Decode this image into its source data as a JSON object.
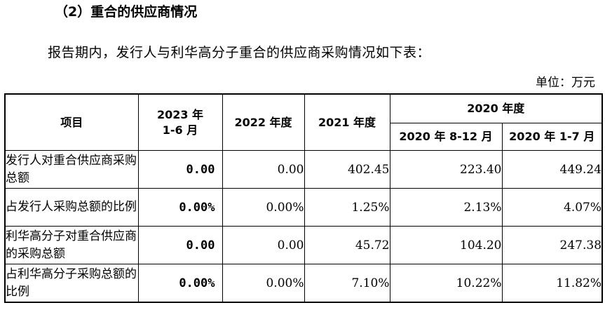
{
  "section_heading": "（2）重合的供应商情况",
  "intro": "报告期内，发行人与利华高分子重合的供应商采购情况如下表：",
  "unit": "单位：万元",
  "table": {
    "headers": {
      "item": "项目",
      "c2023": "2023 年\n1-6 月",
      "c2022": "2022 年度",
      "c2021": "2021 年度",
      "c2020": "2020 年度",
      "c2020a": "2020 年 8-12 月",
      "c2020b": "2020 年 1-7 月"
    },
    "rows": [
      {
        "label": "发行人对重合供应商采购总额",
        "values": [
          "0.00",
          "0.00",
          "402.45",
          "223.40",
          "449.24"
        ]
      },
      {
        "label": "占发行人采购总额的比例",
        "values": [
          "0.00%",
          "0.00%",
          "1.25%",
          "2.13%",
          "4.07%"
        ]
      },
      {
        "label": "利华高分子对重合供应商的采购总额",
        "values": [
          "0.00",
          "0.00",
          "45.72",
          "104.20",
          "247.38"
        ]
      },
      {
        "label": "占利华高分子采购总额的比例",
        "values": [
          "0.00%",
          "0.00%",
          "7.10%",
          "10.22%",
          "11.82%"
        ]
      }
    ]
  }
}
